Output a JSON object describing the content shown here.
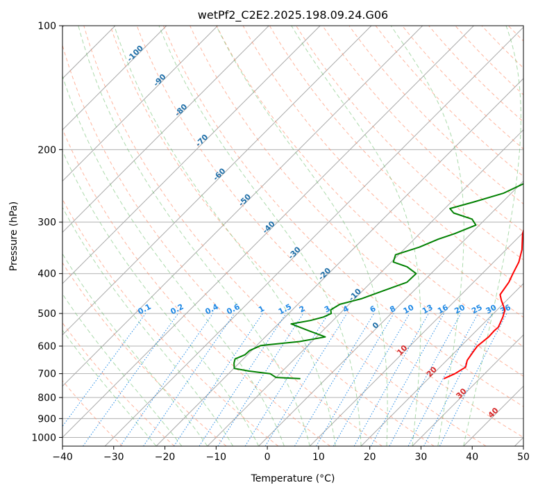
{
  "chart_data": {
    "type": "line",
    "title": "wetPf2_C2E2.2025.198.09.24.G06",
    "xlabel": "Temperature (°C)",
    "ylabel": "Pressure (hPa)",
    "xlim": [
      -40,
      50
    ],
    "ylim": [
      1050,
      100
    ],
    "y_scale": "log",
    "grid": true,
    "x_ticks": [
      -40,
      -30,
      -20,
      -10,
      0,
      10,
      20,
      30,
      40,
      50
    ],
    "y_ticks": [
      1000,
      900,
      800,
      700,
      600,
      500,
      400,
      300,
      200,
      100
    ],
    "temperature_color": "#ff0000",
    "dewpoint_color": "#008000",
    "dry_adiabat_color": "#ff8c69",
    "moist_adiabat_color": "#66bb66",
    "mixing_ratio_color": "#1e88e5",
    "isotherm_label_color": "#1f6fa8",
    "isotherm_label_warm_color": "#d62728",
    "series": [
      {
        "key": "temperature",
        "points": [
          [
            23,
            720
          ],
          [
            24.2,
            700
          ],
          [
            25,
            675
          ],
          [
            24,
            650
          ],
          [
            23.5,
            620
          ],
          [
            23.2,
            600
          ],
          [
            23.6,
            570
          ],
          [
            23.5,
            550
          ],
          [
            23.6,
            540
          ],
          [
            22.5,
            510
          ],
          [
            21.5,
            490
          ],
          [
            19,
            465
          ],
          [
            17.6,
            450
          ],
          [
            16.9,
            420
          ],
          [
            16,
            400
          ],
          [
            14.9,
            375
          ],
          [
            13.1,
            350
          ],
          [
            10.1,
            320
          ],
          [
            8.5,
            300
          ],
          [
            6.9,
            280
          ],
          [
            5,
            260
          ],
          [
            2.6,
            240
          ],
          [
            0.1,
            222
          ],
          [
            -1.3,
            210
          ],
          [
            -2.8,
            200
          ],
          [
            -3.5,
            185
          ],
          [
            -4.8,
            170
          ],
          [
            -6.3,
            155
          ],
          [
            -8,
            145
          ],
          [
            -8.2,
            138
          ],
          [
            -6.1,
            130
          ],
          [
            -5,
            122
          ],
          [
            -5.5,
            115
          ],
          [
            -6.8,
            108
          ],
          [
            -6.8,
            103
          ],
          [
            -7,
            100
          ]
        ]
      },
      {
        "key": "dewpoint",
        "points": [
          [
            -5,
            720
          ],
          [
            -10,
            715
          ],
          [
            -11.9,
            700
          ],
          [
            -16.5,
            690
          ],
          [
            -19.9,
            680
          ],
          [
            -21,
            660
          ],
          [
            -21.6,
            645
          ],
          [
            -20.5,
            630
          ],
          [
            -20.4,
            615
          ],
          [
            -19.2,
            598
          ],
          [
            -12.4,
            585
          ],
          [
            -8.3,
            570
          ],
          [
            -12.9,
            550
          ],
          [
            -17.5,
            530
          ],
          [
            -14.4,
            520
          ],
          [
            -12.5,
            510
          ],
          [
            -11.7,
            500
          ],
          [
            -12.5,
            490
          ],
          [
            -11.8,
            475
          ],
          [
            -8.6,
            460
          ],
          [
            -5.9,
            440
          ],
          [
            -3,
            420
          ],
          [
            -2.9,
            400
          ],
          [
            -6,
            385
          ],
          [
            -9.6,
            375
          ],
          [
            -10.6,
            360
          ],
          [
            -7.4,
            345
          ],
          [
            -5.3,
            330
          ],
          [
            -3.2,
            320
          ],
          [
            -0.7,
            305
          ],
          [
            -2.6,
            295
          ],
          [
            -7.4,
            285
          ],
          [
            -9,
            278
          ],
          [
            -5.6,
            268
          ],
          [
            -1.5,
            255
          ],
          [
            1.7,
            235
          ],
          [
            2.5,
            220
          ],
          [
            -0.5,
            205
          ],
          [
            -3.7,
            195
          ],
          [
            -8.5,
            180
          ],
          [
            -10.8,
            170
          ],
          [
            -11.5,
            160
          ],
          [
            -11.5,
            150
          ],
          [
            -11,
            140
          ],
          [
            -10.5,
            132
          ],
          [
            -9.5,
            125
          ],
          [
            -8,
            118
          ],
          [
            -7.7,
            112
          ],
          [
            -8.3,
            106
          ],
          [
            -8.8,
            100
          ]
        ]
      }
    ],
    "mixing_ratio_labels": [
      "0.1",
      "0.2",
      "0.4",
      "0.6",
      "1",
      "1.5",
      "2",
      "3",
      "4",
      "6",
      "8",
      "10",
      "13",
      "16",
      "20",
      "25",
      "30",
      "36"
    ],
    "isotherm_labels": [
      "-100",
      "-90",
      "-80",
      "-70",
      "-60",
      "-50",
      "-40",
      "-30",
      "-20",
      "-10",
      "0",
      "10",
      "20",
      "30",
      "40"
    ]
  }
}
